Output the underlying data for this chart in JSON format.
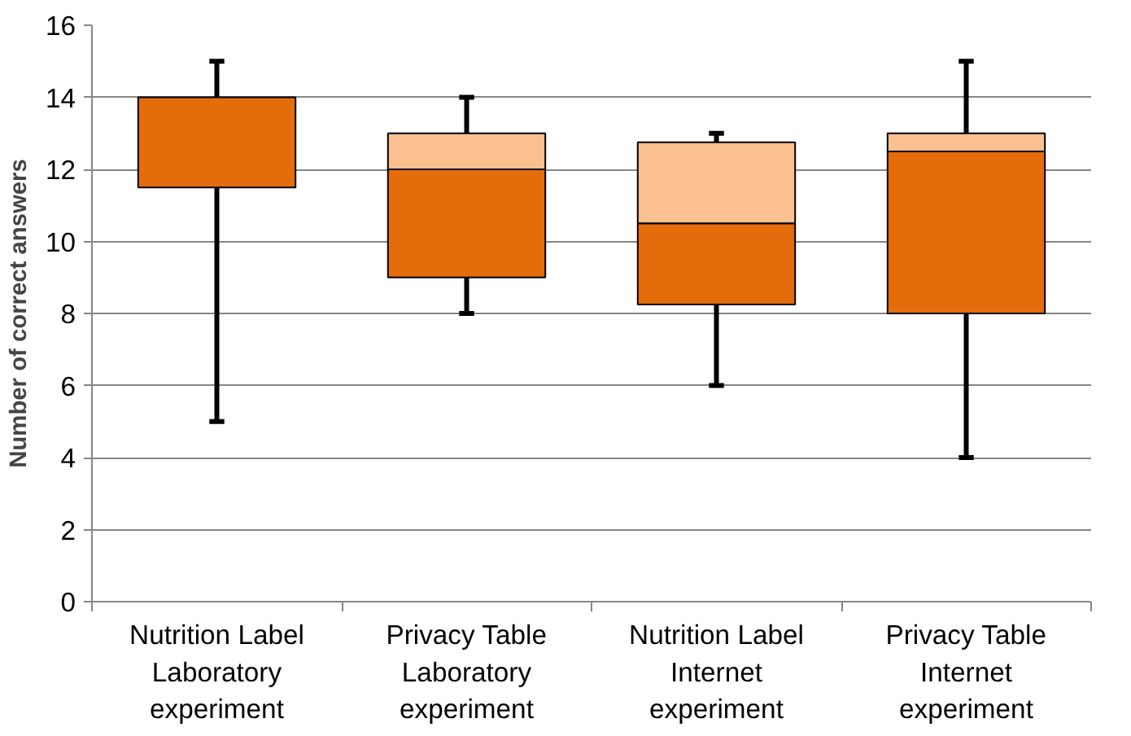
{
  "chart_data": {
    "type": "box",
    "ylabel": "Number of correct answers",
    "categories": [
      "Nutrition Label\nLaboratory\nexperiment",
      "Privacy Table\nLaboratory\nexperiment",
      "Nutrition Label\nInternet\nexperiment",
      "Privacy Table\nInternet\nexperiment"
    ],
    "boxes": [
      {
        "low": 5,
        "q1": 11.5,
        "median": 14,
        "q3": 14,
        "high": 15
      },
      {
        "low": 8,
        "q1": 9,
        "median": 12,
        "q3": 13,
        "high": 14
      },
      {
        "low": 6,
        "q1": 8.25,
        "median": 10.5,
        "q3": 12.75,
        "high": 13
      },
      {
        "low": 4,
        "q1": 8,
        "median": 12.5,
        "q3": 13,
        "high": 15
      }
    ],
    "color": "#e46c0a",
    "ylim": [
      0,
      16
    ],
    "yticks": [
      0,
      2,
      4,
      6,
      8,
      10,
      12,
      14,
      16
    ],
    "grid": "y"
  }
}
